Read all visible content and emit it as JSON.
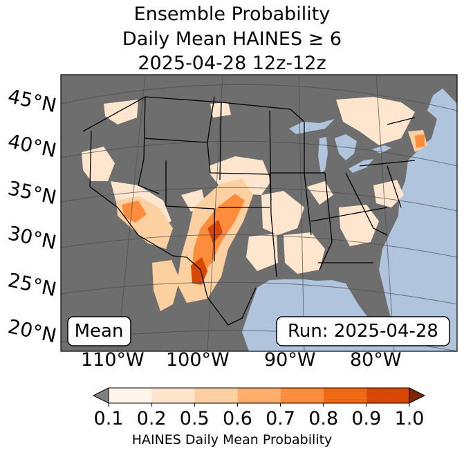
{
  "title": {
    "line1": "Ensemble Probability",
    "line2": "Daily Mean HAINES ≥ 6",
    "line3": "2025-04-28 12z-12z"
  },
  "lat_labels": [
    "45°N",
    "40°N",
    "35°N",
    "30°N",
    "25°N",
    "20°N"
  ],
  "lon_labels": [
    "110°W",
    "100°W",
    "90°W",
    "80°W"
  ],
  "boxes": {
    "left": "Mean",
    "right": "Run: 2025-04-28"
  },
  "colorbar": {
    "title": "HAINES Daily Mean Probability",
    "ticks": [
      "0.1",
      "0.2",
      "0.5",
      "0.6",
      "0.7",
      "0.8",
      "0.9",
      "1.0"
    ],
    "colors": [
      "#fff5eb",
      "#fee6ce",
      "#fdd0a2",
      "#fdae6b",
      "#fd8d3c",
      "#f16913",
      "#d94801"
    ],
    "under_color": "#808080",
    "over_color": "#7f2704"
  },
  "colors": {
    "ocean": "#b0c4de",
    "no_data": "#6e6e6e",
    "border": "#000000"
  }
}
